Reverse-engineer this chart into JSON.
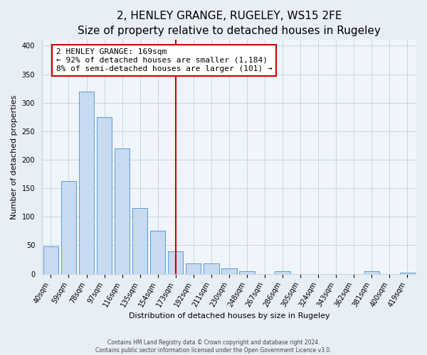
{
  "title": "2, HENLEY GRANGE, RUGELEY, WS15 2FE",
  "subtitle": "Size of property relative to detached houses in Rugeley",
  "xlabel": "Distribution of detached houses by size in Rugeley",
  "ylabel": "Number of detached properties",
  "bar_labels": [
    "40sqm",
    "59sqm",
    "78sqm",
    "97sqm",
    "116sqm",
    "135sqm",
    "154sqm",
    "173sqm",
    "192sqm",
    "211sqm",
    "230sqm",
    "248sqm",
    "267sqm",
    "286sqm",
    "305sqm",
    "324sqm",
    "343sqm",
    "362sqm",
    "381sqm",
    "400sqm",
    "419sqm"
  ],
  "bar_values": [
    48,
    163,
    320,
    275,
    220,
    115,
    75,
    39,
    18,
    18,
    10,
    5,
    0,
    4,
    0,
    0,
    0,
    0,
    4,
    0,
    2
  ],
  "bar_color": "#c8daf0",
  "bar_edge_color": "#5b9bd5",
  "vline_x_index": 7,
  "vline_color": "#cc0000",
  "annotation_line1": "2 HENLEY GRANGE: 169sqm",
  "annotation_line2": "← 92% of detached houses are smaller (1,184)",
  "annotation_line3": "8% of semi-detached houses are larger (101) →",
  "ylim": [
    0,
    410
  ],
  "yticks": [
    0,
    50,
    100,
    150,
    200,
    250,
    300,
    350,
    400
  ],
  "footer_line1": "Contains HM Land Registry data © Crown copyright and database right 2024.",
  "footer_line2": "Contains public sector information licensed under the Open Government Licence v3.0.",
  "bg_color": "#e8eef5",
  "plot_bg_color": "#f0f5fb",
  "grid_color": "#c8d4e0",
  "title_fontsize": 11,
  "subtitle_fontsize": 9,
  "axis_label_fontsize": 8,
  "tick_fontsize": 7,
  "annotation_fontsize": 8
}
